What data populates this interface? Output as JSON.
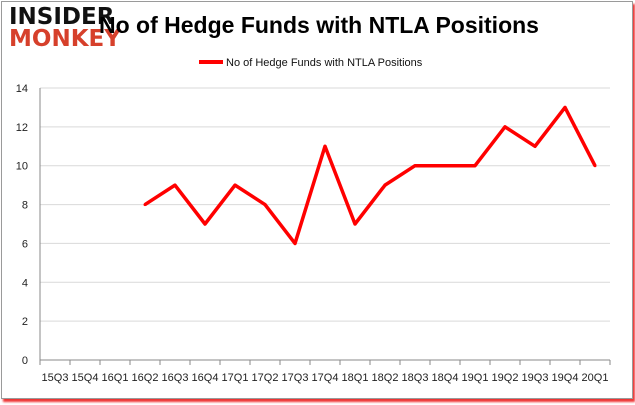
{
  "logo": {
    "line1": "INSIDER",
    "line2": "MONKEY"
  },
  "chart_data": {
    "type": "line",
    "title": "No of Hedge Funds with NTLA Positions",
    "xlabel": "",
    "ylabel": "",
    "categories": [
      "15Q3",
      "15Q4",
      "16Q1",
      "16Q2",
      "16Q3",
      "16Q4",
      "17Q1",
      "17Q2",
      "17Q3",
      "17Q4",
      "18Q1",
      "18Q2",
      "18Q3",
      "18Q4",
      "19Q1",
      "19Q2",
      "19Q3",
      "19Q4",
      "20Q1"
    ],
    "series": [
      {
        "name": "No of Hedge Funds with NTLA Positions",
        "color": "#ff0000",
        "values": [
          null,
          null,
          null,
          8,
          9,
          7,
          9,
          8,
          6,
          11,
          7,
          9,
          10,
          10,
          10,
          12,
          11,
          13,
          10
        ]
      }
    ],
    "ylim": [
      0,
      14
    ],
    "yticks": [
      0,
      2,
      4,
      6,
      8,
      10,
      12,
      14
    ],
    "grid": true,
    "legend": "top-center"
  }
}
